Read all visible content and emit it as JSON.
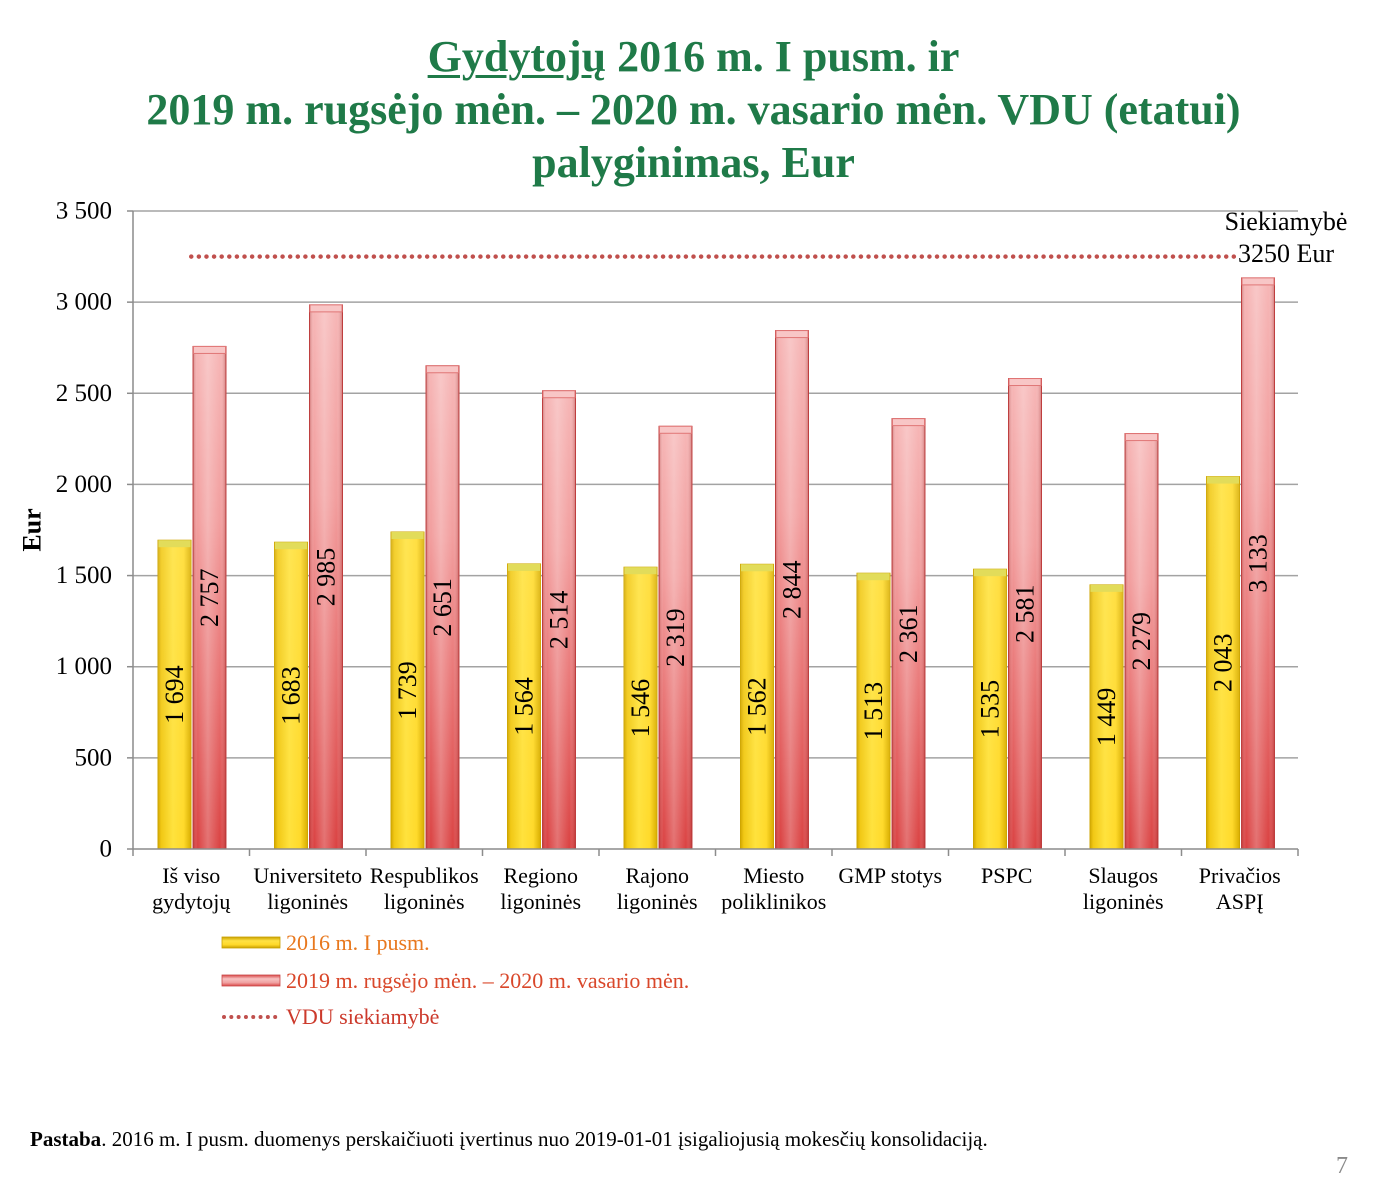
{
  "chart_data": {
    "type": "bar",
    "title": {
      "line1_underlined": "Gydytojų",
      "line1": "2016 m. I pusm. ir",
      "line2": "2019 m. rugsėjo mėn. – 2020 m. vasario mėn. VDU (etatui)",
      "line3": "palyginimas, Eur"
    },
    "ylabel": "Eur",
    "ylim": [
      0,
      3500
    ],
    "yticks": [
      0,
      500,
      1000,
      1500,
      2000,
      2500,
      3000,
      3500
    ],
    "ytick_labels": [
      "0",
      "500",
      "1 000",
      "1 500",
      "2 000",
      "2 500",
      "3 000",
      "3 500"
    ],
    "grid": true,
    "categories": [
      "Iš viso\ngydytojų",
      "Universiteto\nligoninės",
      "Respublikos\nligoninės",
      "Regiono\nligoninės",
      "Rajono\nligoninės",
      "Miesto\npoliklinikos",
      "GMP stotys",
      "PSPC",
      "Slaugos\nligoninės",
      "Privačios\nASPĮ"
    ],
    "series": [
      {
        "name": "2016 m. I pusm.",
        "color": "#f9d423",
        "values": [
          1694,
          1683,
          1739,
          1564,
          1546,
          1562,
          1513,
          1535,
          1449,
          2043
        ],
        "data_labels": [
          "1 694",
          "1 683",
          "1 739",
          "1 564",
          "1 546",
          "1 562",
          "1 513",
          "1 535",
          "1 449",
          "2 043"
        ]
      },
      {
        "name": "2019 m. rugsėjo mėn. – 2020 m. vasario mėn.",
        "color": "#e35656",
        "values": [
          2757,
          2985,
          2651,
          2514,
          2319,
          2844,
          2361,
          2581,
          2279,
          3133
        ],
        "data_labels": [
          "2 757",
          "2 985",
          "2 651",
          "2 514",
          "2 319",
          "2 844",
          "2 361",
          "2 581",
          "2 279",
          "3 133"
        ]
      }
    ],
    "reference_line": {
      "name": "VDU siekiamybė",
      "value": 3250,
      "color": "#c0504d",
      "annotation": [
        "Siekiamybė",
        "3250 Eur"
      ]
    },
    "legend": {
      "position": "bottom-left"
    }
  },
  "note": {
    "label": "Pastaba",
    "text": ". 2016 m. I pusm. duomenys perskaičiuoti įvertinus nuo 2019-01-01 įsigaliojusią mokesčių konsolidaciją."
  },
  "page_number": "7",
  "colors": {
    "title": "#1f7a48",
    "legend_series_1_text": "#e8781e",
    "legend_series_2_text": "#d9472a",
    "legend_reference_text": "#cc3a2c",
    "page_number": "#8a8a8a"
  }
}
